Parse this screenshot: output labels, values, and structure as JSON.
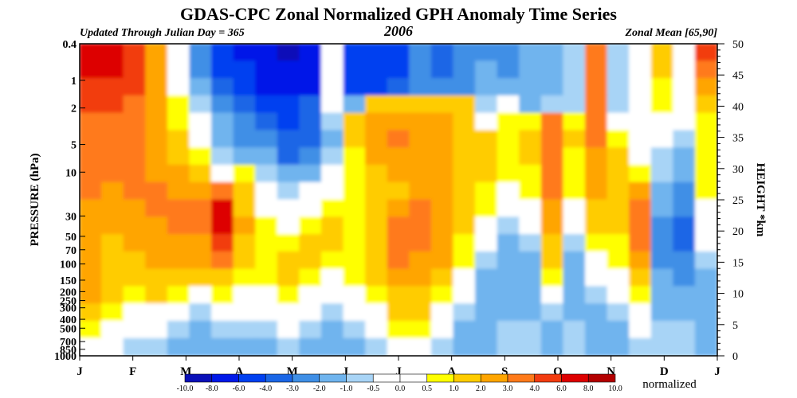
{
  "chart_data": {
    "type": "heatmap",
    "title": "GDAS-CPC Zonal Normalized GPH Anomaly Time Series",
    "subtitle_left": "Updated Through Julian Day = 365",
    "subtitle_center": "2006",
    "subtitle_right": "Zonal Mean [65,90]",
    "ylabel": "PRESSURE (hPa)",
    "y2label": "HEIGHT *km",
    "x_ticks": [
      "J",
      "F",
      "M",
      "A",
      "M",
      "J",
      "J",
      "A",
      "S",
      "O",
      "N",
      "D",
      "J"
    ],
    "y_ticks": [
      "0.4",
      "1",
      "2",
      "5",
      "10",
      "30",
      "50",
      "70",
      "100",
      "150",
      "200",
      "250",
      "300",
      "400",
      "500",
      "700",
      "850",
      "1000"
    ],
    "y2_ticks": [
      "50",
      "45",
      "40",
      "35",
      "30",
      "25",
      "20",
      "15",
      "10",
      "5",
      "0"
    ],
    "colorbar": {
      "levels": [
        "-10.0",
        "-8.0",
        "-6.0",
        "-4.0",
        "-3.0",
        "-2.0",
        "-1.0",
        "-0.5",
        "0.0",
        "0.5",
        "1.0",
        "2.0",
        "3.0",
        "4.0",
        "6.0",
        "8.0",
        "10.0"
      ],
      "colors": [
        "#0a10b8",
        "#0018e8",
        "#0040f0",
        "#1a66e6",
        "#3f8fe6",
        "#6fb4ee",
        "#a8d4f6",
        "#ffffff",
        "#ffffff",
        "#ffff00",
        "#ffcc00",
        "#ffa500",
        "#ff7a1a",
        "#f23c10",
        "#dd0000",
        "#b30000"
      ],
      "unit_label": "normalized"
    },
    "value_field": [
      [
        6.5,
        7.0,
        5.0,
        2.5,
        -0.5,
        -3.0,
        -5.0,
        -6.5,
        -8.0,
        -8.5,
        -8.0,
        -0.5,
        -6.0,
        -5.5,
        -4.5,
        -3.0,
        -3.5,
        -3.0,
        -2.5,
        -2.5,
        -2.0,
        -1.5,
        -1.0,
        3.0,
        -1.0,
        -0.5,
        1.0,
        -0.5,
        4.0
      ],
      [
        6.0,
        6.5,
        4.5,
        2.0,
        -0.5,
        -2.5,
        -4.5,
        -6.0,
        -7.5,
        -8.0,
        -7.5,
        -0.5,
        -5.5,
        -5.5,
        -4.5,
        -3.0,
        -3.5,
        -3.0,
        -2.0,
        -2.5,
        -2.0,
        -1.5,
        -1.0,
        3.0,
        -1.0,
        -0.5,
        1.0,
        -0.5,
        3.0
      ],
      [
        5.0,
        5.5,
        4.0,
        2.0,
        0.0,
        -2.0,
        -3.5,
        -5.0,
        -6.5,
        -7.0,
        -6.5,
        -0.5,
        -5.0,
        -4.5,
        -4.0,
        -3.0,
        -3.0,
        -2.5,
        -1.5,
        -2.0,
        -1.5,
        -1.5,
        -1.0,
        3.0,
        -1.0,
        -0.5,
        0.5,
        -0.5,
        2.0
      ],
      [
        4.0,
        4.5,
        3.5,
        2.0,
        0.5,
        -1.0,
        -2.5,
        -4.0,
        -5.0,
        -5.5,
        -4.0,
        -0.5,
        -1.5,
        1.0,
        1.5,
        1.0,
        1.5,
        1.0,
        -1.0,
        -0.5,
        -1.5,
        -1.0,
        -1.0,
        3.0,
        -1.0,
        -0.5,
        0.5,
        -0.5,
        1.0
      ],
      [
        3.0,
        3.5,
        3.0,
        2.0,
        0.5,
        -0.5,
        -2.0,
        -3.0,
        -4.0,
        -4.5,
        -3.5,
        -1.0,
        1.0,
        2.0,
        2.5,
        2.0,
        2.5,
        1.5,
        0.0,
        0.5,
        0.5,
        3.0,
        0.5,
        3.5,
        -0.5,
        -0.5,
        0.0,
        -0.5,
        0.5
      ],
      [
        3.0,
        3.0,
        3.0,
        2.0,
        1.0,
        0.0,
        -1.5,
        -2.5,
        -3.0,
        -4.0,
        -3.5,
        -1.5,
        1.0,
        2.5,
        3.0,
        2.5,
        2.0,
        1.5,
        1.0,
        0.5,
        1.0,
        3.5,
        1.0,
        3.0,
        0.5,
        -0.5,
        -0.5,
        -1.0,
        0.5
      ],
      [
        3.0,
        3.0,
        3.0,
        2.5,
        1.5,
        0.5,
        -1.0,
        -1.5,
        -2.0,
        -3.5,
        -3.0,
        -1.0,
        0.5,
        2.0,
        2.5,
        2.5,
        2.0,
        1.5,
        1.0,
        0.5,
        1.0,
        3.5,
        0.5,
        2.5,
        1.0,
        -0.5,
        -1.0,
        -1.5,
        0.5
      ],
      [
        3.0,
        3.0,
        3.0,
        2.5,
        2.0,
        1.0,
        0.0,
        0.5,
        -1.0,
        -2.0,
        -1.5,
        -0.5,
        0.5,
        1.5,
        2.0,
        2.5,
        2.0,
        1.5,
        1.0,
        0.5,
        0.5,
        3.0,
        0.5,
        2.5,
        1.5,
        0.5,
        -1.0,
        -2.0,
        0.5
      ],
      [
        3.0,
        2.5,
        3.0,
        3.0,
        2.5,
        2.0,
        3.5,
        1.0,
        -0.5,
        -1.0,
        -0.5,
        0.0,
        0.5,
        1.0,
        1.5,
        2.5,
        2.0,
        1.0,
        0.5,
        0.0,
        0.5,
        3.0,
        0.5,
        2.0,
        1.5,
        2.5,
        -1.5,
        -2.5,
        0.5
      ],
      [
        2.5,
        2.0,
        2.5,
        3.0,
        3.0,
        3.0,
        6.0,
        1.5,
        0.0,
        -0.5,
        0.0,
        0.5,
        0.5,
        1.0,
        2.0,
        3.0,
        2.0,
        1.0,
        0.5,
        -0.5,
        0.0,
        2.5,
        0.0,
        1.5,
        1.5,
        3.0,
        -2.0,
        -3.0,
        0.0
      ],
      [
        2.0,
        2.0,
        2.0,
        2.5,
        3.0,
        3.0,
        6.5,
        2.0,
        0.5,
        0.0,
        0.5,
        1.0,
        0.5,
        1.0,
        3.0,
        3.0,
        2.5,
        1.0,
        0.0,
        -1.0,
        -0.5,
        2.0,
        -0.5,
        1.0,
        1.0,
        3.5,
        -2.5,
        -3.5,
        0.0
      ],
      [
        2.0,
        1.5,
        2.0,
        2.0,
        2.5,
        2.5,
        5.0,
        1.5,
        0.5,
        0.5,
        1.0,
        1.0,
        0.5,
        1.5,
        3.5,
        3.0,
        2.5,
        0.5,
        -0.5,
        -1.5,
        -1.0,
        1.5,
        -1.0,
        0.5,
        0.5,
        3.0,
        -2.5,
        -3.5,
        -0.5
      ],
      [
        2.0,
        1.5,
        1.5,
        2.0,
        2.0,
        2.0,
        3.0,
        1.0,
        0.5,
        1.0,
        1.0,
        0.5,
        0.5,
        1.5,
        3.5,
        2.5,
        2.0,
        0.5,
        -1.0,
        -2.0,
        -1.5,
        1.0,
        -1.5,
        0.0,
        0.5,
        2.0,
        -2.5,
        -3.0,
        -1.0
      ],
      [
        2.5,
        1.5,
        1.0,
        1.5,
        1.5,
        1.0,
        1.5,
        0.5,
        0.5,
        1.0,
        0.5,
        0.0,
        0.5,
        1.0,
        2.5,
        2.0,
        1.0,
        0.0,
        -1.5,
        -2.0,
        -1.5,
        0.5,
        -2.0,
        -0.5,
        0.0,
        1.0,
        -2.0,
        -2.5,
        -1.5
      ],
      [
        2.0,
        1.0,
        0.5,
        1.0,
        0.5,
        0.0,
        0.5,
        0.0,
        0.0,
        0.5,
        0.0,
        -0.5,
        0.0,
        0.5,
        1.5,
        1.5,
        0.5,
        -0.5,
        -2.0,
        -2.0,
        -1.5,
        -0.5,
        -2.0,
        -1.0,
        -0.5,
        0.5,
        -1.5,
        -2.0,
        -1.5
      ],
      [
        1.0,
        0.5,
        0.0,
        0.0,
        -0.5,
        -1.0,
        -0.5,
        -0.5,
        -0.5,
        0.0,
        -0.5,
        -1.0,
        -0.5,
        0.0,
        1.0,
        1.0,
        0.0,
        -1.0,
        -2.0,
        -1.5,
        -1.5,
        -1.0,
        -1.5,
        -1.5,
        -1.0,
        0.0,
        -1.5,
        -1.5,
        -1.5
      ],
      [
        0.5,
        0.0,
        -0.5,
        -0.5,
        -1.0,
        -1.5,
        -1.0,
        -1.0,
        -1.0,
        -0.5,
        -1.0,
        -1.5,
        -1.0,
        -0.5,
        0.5,
        0.5,
        -0.5,
        -1.5,
        -2.0,
        -1.0,
        -1.0,
        -1.5,
        -1.0,
        -1.5,
        -1.5,
        -0.5,
        -1.0,
        -1.0,
        -1.5
      ],
      [
        0.0,
        -0.5,
        -1.0,
        -1.0,
        -1.5,
        -2.0,
        -1.5,
        -1.5,
        -1.5,
        -1.0,
        -1.5,
        -2.0,
        -1.5,
        -1.0,
        0.0,
        0.0,
        -1.0,
        -2.0,
        -2.0,
        -1.0,
        -1.0,
        -2.0,
        -1.0,
        -2.0,
        -2.0,
        -1.0,
        -1.0,
        -1.0,
        -1.5
      ]
    ]
  }
}
